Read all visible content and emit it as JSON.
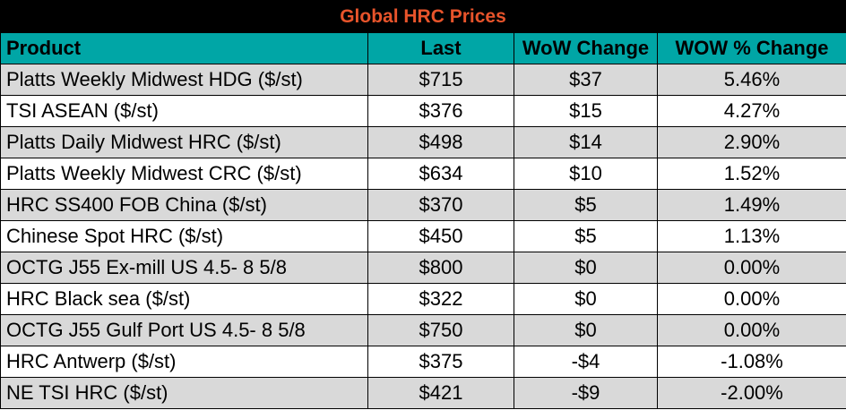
{
  "title": "Global HRC Prices",
  "headers": {
    "product": "Product",
    "last": "Last",
    "wow_change": "WoW Change",
    "wow_pct_change": "WOW % Change"
  },
  "rows": [
    {
      "product": "Platts Weekly Midwest HDG ($/st)",
      "last": "$715",
      "wow_change": "$37",
      "wow_pct_change": "5.46%"
    },
    {
      "product": "TSI ASEAN ($/st)",
      "last": "$376",
      "wow_change": "$15",
      "wow_pct_change": "4.27%"
    },
    {
      "product": "Platts Daily Midwest HRC ($/st)",
      "last": "$498",
      "wow_change": "$14",
      "wow_pct_change": "2.90%"
    },
    {
      "product": "Platts Weekly Midwest CRC ($/st)",
      "last": "$634",
      "wow_change": "$10",
      "wow_pct_change": "1.52%"
    },
    {
      "product": "HRC SS400 FOB China ($/st)",
      "last": "$370",
      "wow_change": "$5",
      "wow_pct_change": "1.49%"
    },
    {
      "product": "Chinese Spot HRC ($/st)",
      "last": "$450",
      "wow_change": "$5",
      "wow_pct_change": "1.13%"
    },
    {
      "product": "OCTG J55 Ex-mill US 4.5- 8 5/8",
      "last": "$800",
      "wow_change": "$0",
      "wow_pct_change": "0.00%"
    },
    {
      "product": "HRC Black sea ($/st)",
      "last": "$322",
      "wow_change": "$0",
      "wow_pct_change": "0.00%"
    },
    {
      "product": "OCTG J55 Gulf Port US 4.5- 8 5/8",
      "last": "$750",
      "wow_change": "$0",
      "wow_pct_change": "0.00%"
    },
    {
      "product": "HRC Antwerp ($/st)",
      "last": "$375",
      "wow_change": "-$4",
      "wow_pct_change": "-1.08%"
    },
    {
      "product": "NE TSI HRC ($/st)",
      "last": "$421",
      "wow_change": "-$9",
      "wow_pct_change": "-2.00%"
    }
  ],
  "colors": {
    "title_background": "#000000",
    "title_text": "#e8542b",
    "header_background": "#00a6a6",
    "row_shaded": "#d9d9d9",
    "row_plain": "#ffffff"
  }
}
